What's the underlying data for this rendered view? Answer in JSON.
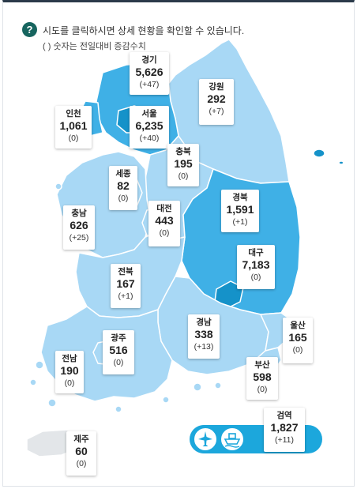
{
  "header": {
    "help_icon": "?",
    "instruction": "시도를 클릭하시면 상세 현황을 확인할 수 있습니다.",
    "legend_note": "( ) 숫자는 전일대비 증감수치"
  },
  "colors": {
    "light": "#a8d8f5",
    "mid": "#3fb0e6",
    "dark": "#1592c9",
    "border": "#ffffff",
    "accent": "#17655f"
  },
  "regions": [
    {
      "id": "gyeonggi",
      "name": "경기",
      "count": "5,626",
      "delta": "(+47)"
    },
    {
      "id": "gangwon",
      "name": "강원",
      "count": "292",
      "delta": "(+7)"
    },
    {
      "id": "incheon",
      "name": "인천",
      "count": "1,061",
      "delta": "(0)"
    },
    {
      "id": "seoul",
      "name": "서울",
      "count": "6,235",
      "delta": "(+40)"
    },
    {
      "id": "chungbuk",
      "name": "충북",
      "count": "195",
      "delta": "(0)"
    },
    {
      "id": "sejong",
      "name": "세종",
      "count": "82",
      "delta": "(0)"
    },
    {
      "id": "chungnam",
      "name": "충남",
      "count": "626",
      "delta": "(+25)"
    },
    {
      "id": "daejeon",
      "name": "대전",
      "count": "443",
      "delta": "(0)"
    },
    {
      "id": "gyeongbuk",
      "name": "경북",
      "count": "1,591",
      "delta": "(+1)"
    },
    {
      "id": "daegu",
      "name": "대구",
      "count": "7,183",
      "delta": "(0)"
    },
    {
      "id": "jeonbuk",
      "name": "전북",
      "count": "167",
      "delta": "(+1)"
    },
    {
      "id": "gwangju",
      "name": "광주",
      "count": "516",
      "delta": "(0)"
    },
    {
      "id": "gyeongnam",
      "name": "경남",
      "count": "338",
      "delta": "(+13)"
    },
    {
      "id": "ulsan",
      "name": "울산",
      "count": "165",
      "delta": "(0)"
    },
    {
      "id": "jeonnam",
      "name": "전남",
      "count": "190",
      "delta": "(0)"
    },
    {
      "id": "busan",
      "name": "부산",
      "count": "598",
      "delta": "(0)"
    },
    {
      "id": "jeju",
      "name": "제주",
      "count": "60",
      "delta": "(0)"
    },
    {
      "id": "quarantine",
      "name": "검역",
      "count": "1,827",
      "delta": "(+11)"
    }
  ],
  "quarantine_icons": [
    "airplane-icon",
    "ship-icon"
  ]
}
